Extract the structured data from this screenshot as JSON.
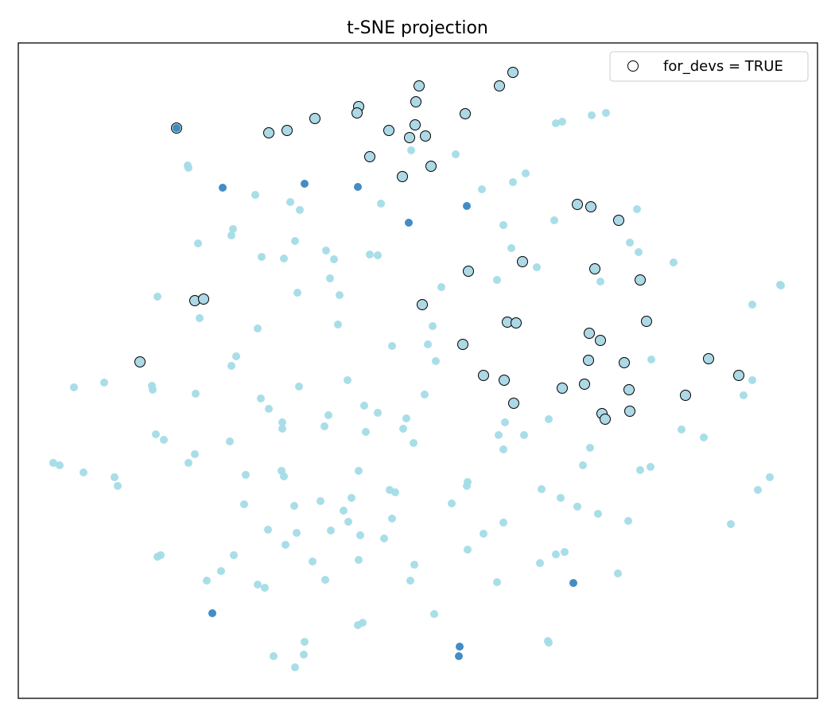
{
  "chart_data": {
    "type": "scatter",
    "title": "t-SNE projection",
    "xlabel": "",
    "ylabel": "",
    "xlim": [
      -50.2,
      50.3
    ],
    "ylim": [
      -41.2,
      41.2
    ],
    "grid": false,
    "axis_ticks": false,
    "legend": {
      "placement": "top-right",
      "entries": [
        "for_devs = TRUE"
      ]
    },
    "colors": {
      "light": "#a3dce6",
      "dark": "#3a86c0",
      "highlight_fill": "#add8e6",
      "highlight_edge": "#000000"
    },
    "series": [
      {
        "color": "#a3dce6",
        "points": [
          [
            17.4,
            31.1
          ],
          [
            18.2,
            31.3
          ],
          [
            21.9,
            32.1
          ],
          [
            23.7,
            32.4
          ],
          [
            -0.8,
            27.7
          ],
          [
            4.8,
            27.2
          ],
          [
            -28.9,
            25.8
          ],
          [
            -28.8,
            25.5
          ],
          [
            13.6,
            24.8
          ],
          [
            12,
            23.7
          ],
          [
            8.1,
            22.8
          ],
          [
            -20.4,
            22.1
          ],
          [
            -16,
            21.2
          ],
          [
            -14.8,
            20.2
          ],
          [
            -4.6,
            21
          ],
          [
            27.6,
            20.3
          ],
          [
            17.2,
            18.9
          ],
          [
            10.8,
            18.3
          ],
          [
            -23.2,
            17.8
          ],
          [
            -23.4,
            17
          ],
          [
            -27.6,
            16
          ],
          [
            -15.4,
            16.3
          ],
          [
            26.7,
            16.1
          ],
          [
            27.8,
            14.9
          ],
          [
            -11.5,
            15.1
          ],
          [
            -19.6,
            14.3
          ],
          [
            -16.8,
            14.1
          ],
          [
            -10.5,
            14
          ],
          [
            -6,
            14.6
          ],
          [
            -5,
            14.5
          ],
          [
            11.8,
            15.4
          ],
          [
            15,
            13
          ],
          [
            32.2,
            13.6
          ],
          [
            -11,
            11.6
          ],
          [
            10,
            11.4
          ],
          [
            23,
            11.2
          ],
          [
            3,
            10.5
          ],
          [
            -15.1,
            9.8
          ],
          [
            -32.7,
            9.3
          ],
          [
            -9.8,
            9.5
          ],
          [
            45.6,
            10.8
          ],
          [
            45.7,
            10.7
          ],
          [
            42.1,
            8.3
          ],
          [
            -27.4,
            6.6
          ],
          [
            -10,
            5.8
          ],
          [
            -20.1,
            5.3
          ],
          [
            1.9,
            5.6
          ],
          [
            -3.2,
            3.1
          ],
          [
            1.3,
            3.3
          ],
          [
            2.3,
            1.2
          ],
          [
            -22.8,
            1.8
          ],
          [
            -23.4,
            0.6
          ],
          [
            29.4,
            1.4
          ],
          [
            -8.8,
            -1.2
          ],
          [
            -39.4,
            -1.5
          ],
          [
            -43.2,
            -2.1
          ],
          [
            -33.4,
            -1.9
          ],
          [
            -33.3,
            -2.4
          ],
          [
            -14.9,
            -2
          ],
          [
            -27.9,
            -2.9
          ],
          [
            0.9,
            -3
          ],
          [
            42.1,
            -1.2
          ],
          [
            41,
            -3.1
          ],
          [
            -19.7,
            -3.5
          ],
          [
            -18.7,
            -4.8
          ],
          [
            -6.7,
            -4.4
          ],
          [
            -5,
            -5.3
          ],
          [
            -11.2,
            -5.6
          ],
          [
            -17,
            -6.5
          ],
          [
            -17,
            -7.3
          ],
          [
            -11.7,
            -7
          ],
          [
            -1.4,
            -6
          ],
          [
            -1.8,
            -7.3
          ],
          [
            -6.5,
            -7.7
          ],
          [
            11,
            -6.5
          ],
          [
            16.5,
            -6.1
          ],
          [
            10.2,
            -8.1
          ],
          [
            13.4,
            -8.1
          ],
          [
            -32.9,
            -8
          ],
          [
            -31.9,
            -8.7
          ],
          [
            -23.6,
            -8.9
          ],
          [
            -0.5,
            -9.1
          ],
          [
            33.2,
            -7.4
          ],
          [
            36,
            -8.4
          ],
          [
            10.8,
            -9.9
          ],
          [
            21.7,
            -9.7
          ],
          [
            -28,
            -10.5
          ],
          [
            -45.8,
            -11.6
          ],
          [
            -45,
            -11.9
          ],
          [
            -28.8,
            -11.6
          ],
          [
            -42,
            -12.8
          ],
          [
            -38.1,
            -13.4
          ],
          [
            -37.7,
            -14.5
          ],
          [
            -21.6,
            -13.1
          ],
          [
            -17.1,
            -12.6
          ],
          [
            -16.8,
            -13.3
          ],
          [
            -7.4,
            -12.6
          ],
          [
            20.8,
            -11.9
          ],
          [
            28,
            -12.5
          ],
          [
            29.3,
            -12.1
          ],
          [
            44.3,
            -13.4
          ],
          [
            6.3,
            -14
          ],
          [
            6.2,
            -14.5
          ],
          [
            42.8,
            -15
          ],
          [
            -3.5,
            -15
          ],
          [
            -2.8,
            -15.3
          ],
          [
            15.6,
            -14.9
          ],
          [
            -8.3,
            -16
          ],
          [
            -12.2,
            -16.4
          ],
          [
            -21.8,
            -16.8
          ],
          [
            -15.5,
            -17
          ],
          [
            4.3,
            -16.7
          ],
          [
            18,
            -16
          ],
          [
            20.1,
            -17.1
          ],
          [
            22.7,
            -18
          ],
          [
            -9.3,
            -17.6
          ],
          [
            -8.7,
            -19
          ],
          [
            -3.2,
            -18.6
          ],
          [
            10.8,
            -19.1
          ],
          [
            26.5,
            -18.9
          ],
          [
            39.4,
            -19.3
          ],
          [
            -18.8,
            -20
          ],
          [
            -15.2,
            -20.4
          ],
          [
            -10.9,
            -20.1
          ],
          [
            -7.2,
            -20.7
          ],
          [
            -4.2,
            -21.1
          ],
          [
            8.3,
            -20.5
          ],
          [
            -16.6,
            -21.9
          ],
          [
            6.3,
            -22.5
          ],
          [
            18.5,
            -22.8
          ],
          [
            17.4,
            -23.1
          ],
          [
            -32.3,
            -23.2
          ],
          [
            -32.7,
            -23.4
          ],
          [
            -23.1,
            -23.2
          ],
          [
            -13.2,
            -24
          ],
          [
            -7.4,
            -23.8
          ],
          [
            -0.4,
            -24.4
          ],
          [
            15.4,
            -24.2
          ],
          [
            -24.7,
            -25.2
          ],
          [
            -26.5,
            -26.4
          ],
          [
            -20.1,
            -26.9
          ],
          [
            -19.2,
            -27.3
          ],
          [
            -11.6,
            -26.3
          ],
          [
            -0.9,
            -26.4
          ],
          [
            10,
            -26.6
          ],
          [
            25.2,
            -25.5
          ],
          [
            2.1,
            -30.6
          ],
          [
            -6.9,
            -31.7
          ],
          [
            -7.5,
            -32
          ],
          [
            -14.2,
            -34.1
          ],
          [
            16.4,
            -34
          ],
          [
            16.5,
            -34.2
          ],
          [
            -18.1,
            -35.9
          ],
          [
            -14.3,
            -35.7
          ],
          [
            -15.4,
            -37.3
          ]
        ]
      },
      {
        "name": "for_devs = TRUE",
        "color": "#add8e6",
        "edgecolor": "#000000",
        "points": [
          [
            -30.3,
            30.5
          ],
          [
            12,
            37.5
          ],
          [
            0.2,
            35.8
          ],
          [
            10.3,
            35.8
          ],
          [
            -0.2,
            33.8
          ],
          [
            -7.4,
            33.2
          ],
          [
            -7.6,
            32.4
          ],
          [
            6,
            32.3
          ],
          [
            -12.9,
            31.7
          ],
          [
            -0.3,
            30.9
          ],
          [
            -18.7,
            29.9
          ],
          [
            -16.4,
            30.2
          ],
          [
            -3.6,
            30.2
          ],
          [
            -1,
            29.3
          ],
          [
            1,
            29.5
          ],
          [
            -6,
            26.9
          ],
          [
            1.7,
            25.7
          ],
          [
            -1.9,
            24.4
          ],
          [
            20.1,
            20.9
          ],
          [
            21.8,
            20.6
          ],
          [
            25.3,
            18.9
          ],
          [
            13.2,
            13.7
          ],
          [
            6.4,
            12.5
          ],
          [
            22.3,
            12.8
          ],
          [
            28,
            11.4
          ],
          [
            -28,
            8.8
          ],
          [
            -26.9,
            9
          ],
          [
            0.6,
            8.3
          ],
          [
            11.3,
            6.1
          ],
          [
            12.4,
            6
          ],
          [
            28.8,
            6.2
          ],
          [
            21.6,
            4.7
          ],
          [
            23,
            3.8
          ],
          [
            5.7,
            3.3
          ],
          [
            -34.9,
            1.1
          ],
          [
            21.5,
            1.3
          ],
          [
            26,
            1
          ],
          [
            36.6,
            1.5
          ],
          [
            8.3,
            -0.6
          ],
          [
            10.9,
            -1.2
          ],
          [
            40.4,
            -0.6
          ],
          [
            18.2,
            -2.2
          ],
          [
            21,
            -1.7
          ],
          [
            26.6,
            -2.4
          ],
          [
            33.7,
            -3.1
          ],
          [
            12.1,
            -4.1
          ],
          [
            23.2,
            -5.4
          ],
          [
            26.7,
            -5.1
          ],
          [
            23.6,
            -6.1
          ]
        ]
      },
      {
        "color": "#3a86c0",
        "points": [
          [
            -24.5,
            23
          ],
          [
            -14.2,
            23.5
          ],
          [
            -7.5,
            23.1
          ],
          [
            -1.1,
            18.6
          ],
          [
            6.2,
            20.7
          ],
          [
            19.6,
            -26.7
          ],
          [
            -25.8,
            -30.5
          ],
          [
            5.3,
            -34.7
          ],
          [
            5.2,
            -35.9
          ],
          [
            -30.3,
            30.5
          ]
        ]
      }
    ]
  }
}
